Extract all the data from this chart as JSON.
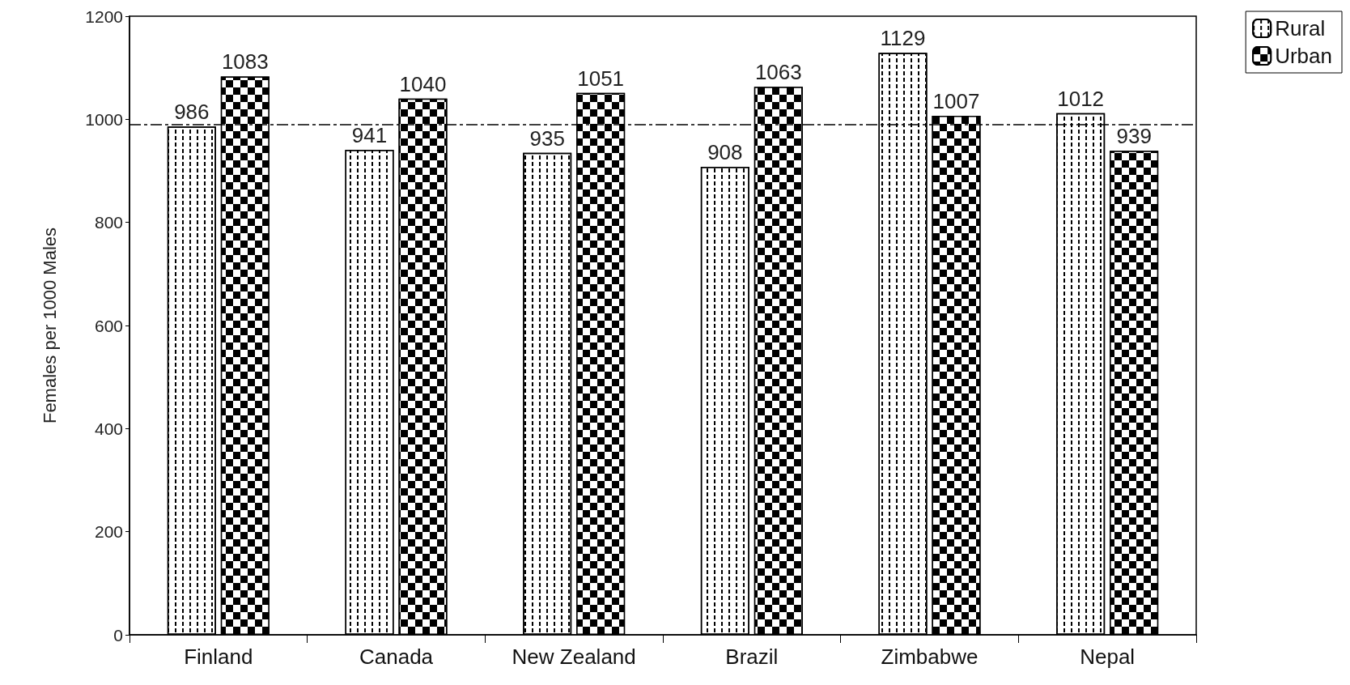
{
  "chart_data": {
    "type": "bar",
    "ylabel": "Females per 1000 Males",
    "categories": [
      "Finland",
      "Canada",
      "New Zealand",
      "Brazil",
      "Zimbabwe",
      "Nepal"
    ],
    "series": [
      {
        "name": "Rural",
        "color": "#ffffff",
        "values": [
          986,
          941,
          935,
          908,
          1129,
          1012
        ]
      },
      {
        "name": "Urban",
        "color": "#000000",
        "values": [
          1083,
          1040,
          1051,
          1063,
          1007,
          939
        ]
      }
    ],
    "ylim": [
      0,
      1200
    ],
    "yticks": [
      0,
      200,
      400,
      600,
      800,
      1000,
      1200
    ],
    "ref_lines": [
      {
        "axis": "y",
        "value": 990,
        "color": "#000000",
        "line_style": "dashed"
      }
    ],
    "data_labels": true,
    "grid": false,
    "legend": "top right"
  }
}
